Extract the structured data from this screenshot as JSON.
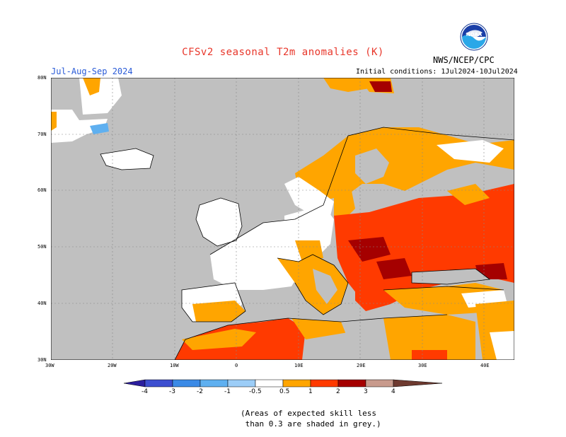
{
  "title": "CFSv2 seasonal T2m anomalies (K)",
  "org": "NWS/NCEP/CPC",
  "logo_text": "NOAA",
  "period": "Jul-Aug-Sep 2024",
  "initial_conditions": "Initial conditions: 1Jul2024-10Jul2024",
  "lat_labels": [
    "80N",
    "70N",
    "60N",
    "50N",
    "40N",
    "30N"
  ],
  "lon_labels": [
    "30W",
    "20W",
    "10W",
    "0",
    "10E",
    "20E",
    "30E",
    "40E"
  ],
  "colorbar": {
    "labels": [
      "-4",
      "-3",
      "-2",
      "-1",
      "-0.5",
      "0.5",
      "1",
      "2",
      "3",
      "4"
    ],
    "colors": [
      "#2b1e9e",
      "#3d4fd0",
      "#3b8ae6",
      "#5fb0f0",
      "#9ccdf7",
      "#ffffff",
      "#ffa500",
      "#ff3a00",
      "#a50000",
      "#c89a8c",
      "#6e3a30"
    ]
  },
  "note": "(Areas of expected skill less\n than 0.3 are shaded in grey.)",
  "palette": {
    "skill_grey": "#c0c0c0",
    "neutral": "#ffffff",
    "orange": "#ffa500",
    "red": "#ff3a00",
    "darkred": "#a50000",
    "lightblue": "#9ccdf7",
    "blue": "#5fb0f0"
  }
}
